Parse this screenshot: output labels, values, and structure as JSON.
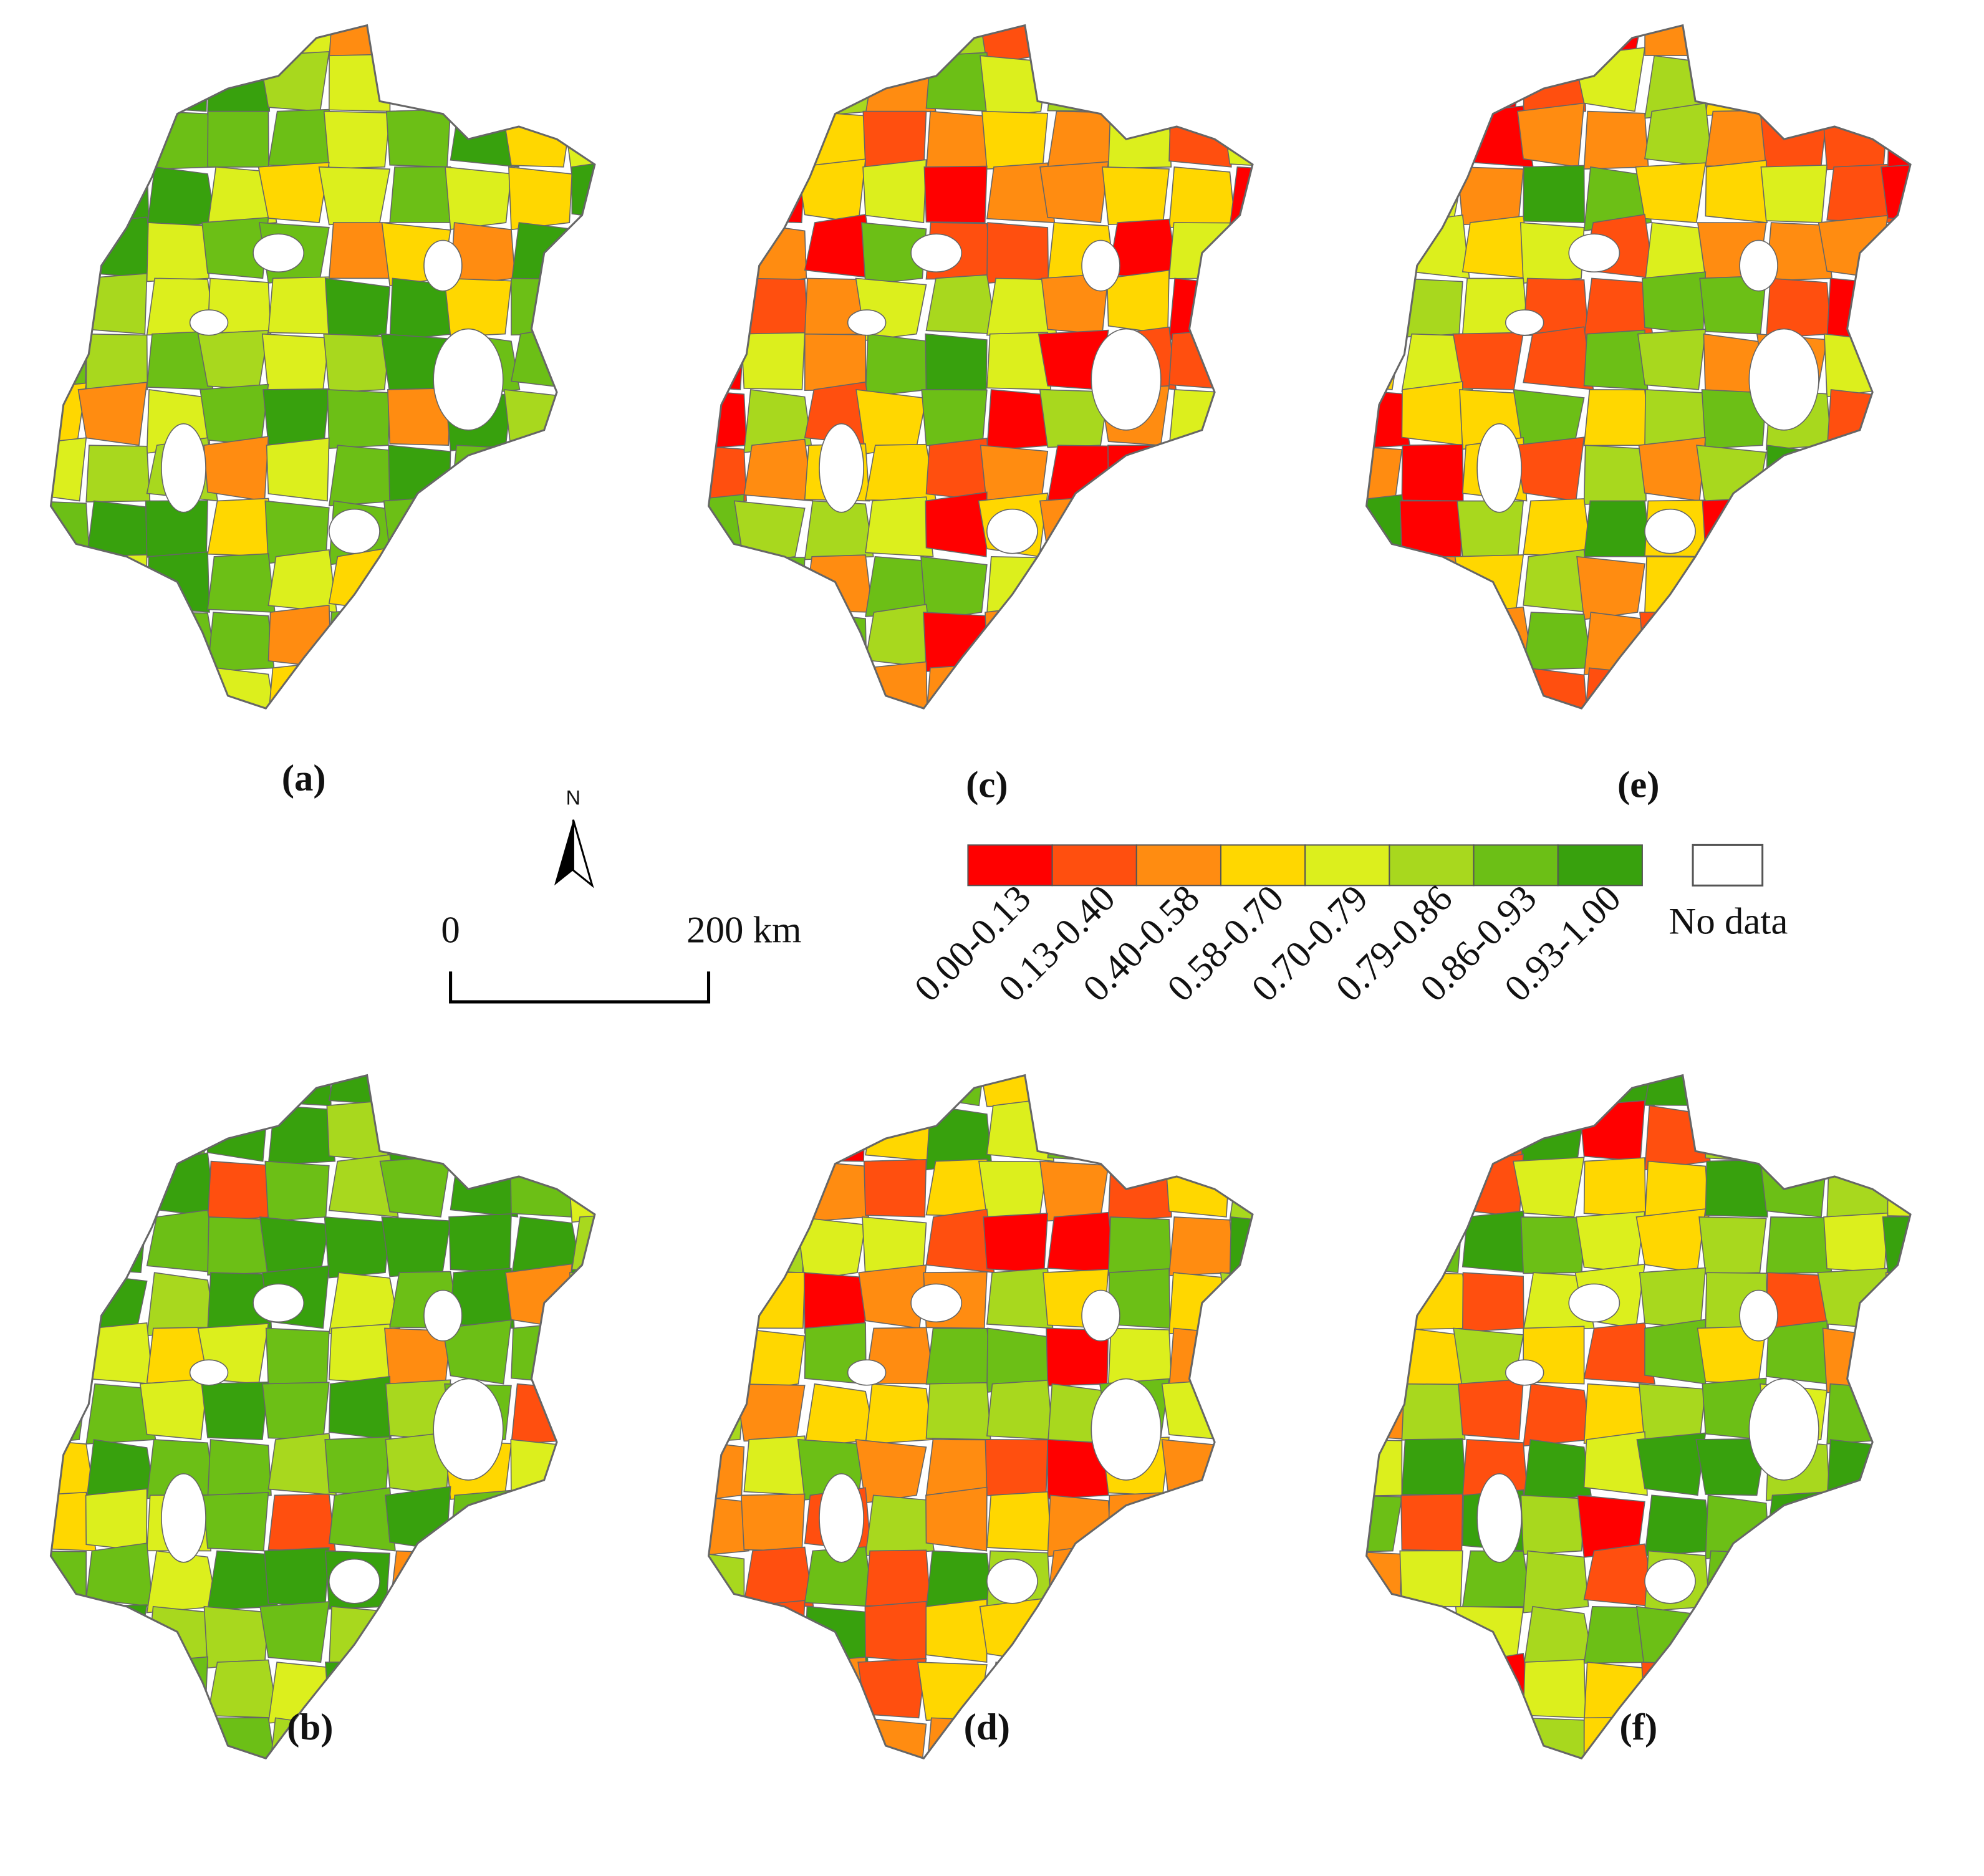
{
  "panels": [
    {
      "label": "(a)"
    },
    {
      "label": "(c)"
    },
    {
      "label": "(e)"
    },
    {
      "label": "(b)"
    },
    {
      "label": "(d)"
    },
    {
      "label": "(f)"
    }
  ],
  "legend": {
    "classes": [
      "0.00-0.13",
      "0.13-0.40",
      "0.40-0.58",
      "0.58-0.70",
      "0.70-0.79",
      "0.79-0.86",
      "0.86-0.93",
      "0.93-1.00"
    ],
    "colors": [
      "#ff0000",
      "#ff4f0f",
      "#ff8c11",
      "#ffd700",
      "#dcef1d",
      "#a8d81e",
      "#6cbf16",
      "#38a10d"
    ],
    "no_data": "No data"
  },
  "scale_bar": {
    "labels": [
      "0",
      "200 km"
    ]
  },
  "north": "N"
}
